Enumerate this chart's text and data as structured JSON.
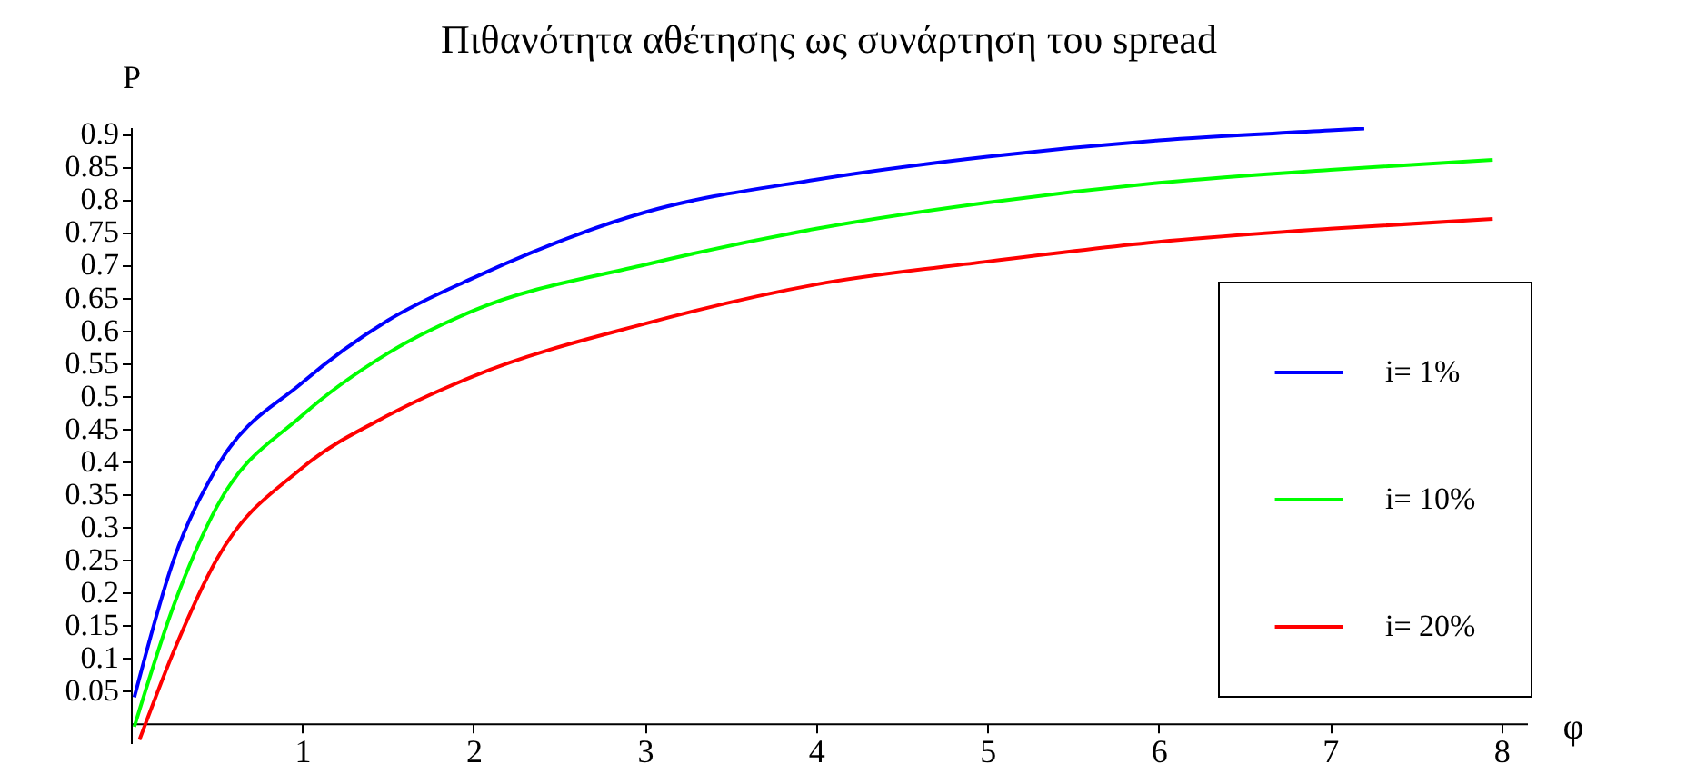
{
  "chart_data": {
    "type": "line",
    "title": "Πιθανότητα αθέτησης ως συνάρτηση του spread",
    "xlabel": "φ",
    "ylabel": "P",
    "xlim": [
      0,
      8.15
    ],
    "ylim": [
      -0.03,
      0.91
    ],
    "xticks": [
      1,
      2,
      3,
      4,
      5,
      6,
      7,
      8
    ],
    "yticks": [
      0.05,
      0.1,
      0.15,
      0.2,
      0.25,
      0.3,
      0.35,
      0.4,
      0.45,
      0.5,
      0.55,
      0.6,
      0.65,
      0.7,
      0.75,
      0.8,
      0.85,
      0.9
    ],
    "grid": false,
    "legend": "right",
    "line_style": "solid",
    "marker": "none",
    "series": [
      {
        "name": "i= 1%",
        "color": "#0000ff",
        "x": [
          0.02,
          0.25,
          0.5,
          1,
          1.5,
          2,
          3,
          4,
          5,
          6,
          7,
          7.2
        ],
        "values": [
          0.04,
          0.25,
          0.39,
          0.52,
          0.615,
          0.68,
          0.78,
          0.83,
          0.865,
          0.89,
          0.905,
          0.908
        ]
      },
      {
        "name": "i= 10%",
        "color": "#00ff00",
        "x": [
          0.02,
          0.25,
          0.5,
          1,
          1.5,
          2,
          3,
          4,
          5,
          6,
          7,
          7.95
        ],
        "values": [
          -0.005,
          0.18,
          0.33,
          0.47,
          0.565,
          0.63,
          0.7,
          0.755,
          0.795,
          0.825,
          0.845,
          0.86
        ]
      },
      {
        "name": "i= 20%",
        "color": "#ff0000",
        "x": [
          0.05,
          0.25,
          0.5,
          1,
          1.5,
          2,
          3,
          4,
          5,
          6,
          7,
          7.95
        ],
        "values": [
          -0.025,
          0.11,
          0.25,
          0.39,
          0.47,
          0.53,
          0.61,
          0.67,
          0.705,
          0.735,
          0.755,
          0.77
        ]
      }
    ]
  }
}
